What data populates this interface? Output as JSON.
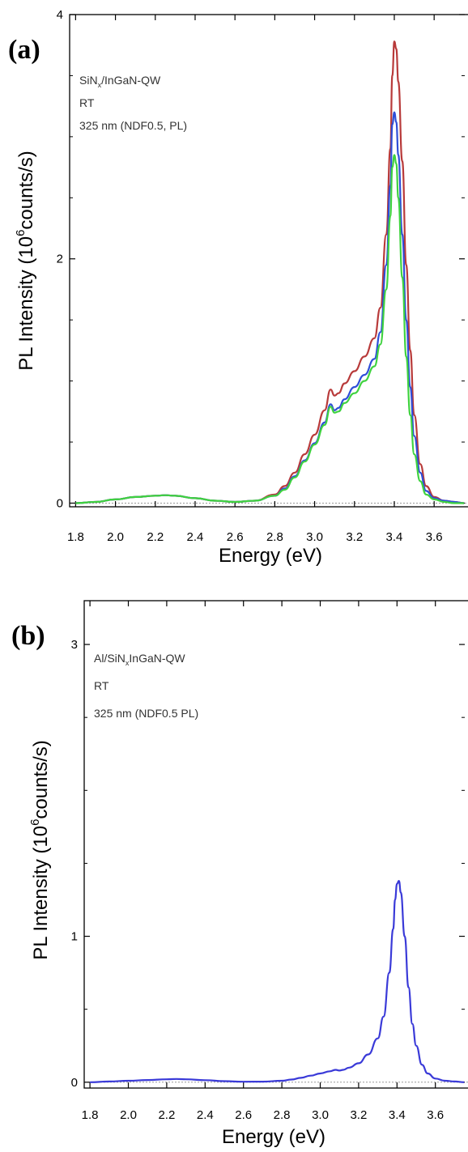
{
  "chart_data": [
    {
      "panel": "(a)",
      "type": "line",
      "annotations": [
        "SiN",
        "x",
        "/InGaN-QW",
        "RT",
        "325 nm (NDF0.5, PL)"
      ],
      "xlabel": "Energy (eV)",
      "ylabel": "PL Intensity (10",
      "ylabel_sup": "6",
      "ylabel_tail": "counts/s)",
      "xlim": [
        1.77,
        3.77
      ],
      "ylim": [
        -0.03,
        4.0
      ],
      "x_ticks": [
        1.8,
        2.0,
        2.2,
        2.4,
        2.6,
        2.8,
        3.0,
        3.2,
        3.4,
        3.6
      ],
      "x_tick_labels": [
        "1.8",
        "2.0",
        "2.2",
        "2.4",
        "2.6",
        "2.8",
        "3.0",
        "3.2",
        "3.4",
        "3.6"
      ],
      "y_major_ticks": [
        0,
        2,
        4
      ],
      "y_tick_labels": [
        "0",
        "2",
        "4"
      ],
      "y_minor_ticks": [
        0.5,
        1,
        1.5,
        2.5,
        3,
        3.5
      ],
      "zero_line": "dotted",
      "grid": false,
      "legend": "none",
      "series": [
        {
          "color": "#b83a3a",
          "x": [
            1.8,
            1.9,
            2.0,
            2.1,
            2.2,
            2.25,
            2.3,
            2.4,
            2.5,
            2.6,
            2.7,
            2.8,
            2.85,
            2.9,
            2.95,
            3.0,
            3.05,
            3.08,
            3.1,
            3.12,
            3.15,
            3.2,
            3.25,
            3.3,
            3.33,
            3.36,
            3.38,
            3.39,
            3.4,
            3.41,
            3.42,
            3.44,
            3.46,
            3.48,
            3.5,
            3.53,
            3.56,
            3.6,
            3.65,
            3.7,
            3.75
          ],
          "values": [
            0.0,
            0.01,
            0.03,
            0.05,
            0.06,
            0.065,
            0.06,
            0.04,
            0.02,
            0.01,
            0.02,
            0.07,
            0.14,
            0.25,
            0.4,
            0.56,
            0.76,
            0.93,
            0.88,
            0.9,
            0.98,
            1.08,
            1.2,
            1.35,
            1.6,
            2.2,
            2.9,
            3.5,
            3.78,
            3.72,
            3.45,
            2.8,
            1.95,
            1.25,
            0.72,
            0.32,
            0.14,
            0.05,
            0.02,
            0.01,
            0.0
          ]
        },
        {
          "color": "#2e4ed8",
          "x": [
            1.8,
            1.9,
            2.0,
            2.1,
            2.2,
            2.25,
            2.3,
            2.4,
            2.5,
            2.6,
            2.7,
            2.8,
            2.85,
            2.9,
            2.95,
            3.0,
            3.05,
            3.08,
            3.1,
            3.12,
            3.15,
            3.2,
            3.25,
            3.3,
            3.33,
            3.36,
            3.38,
            3.39,
            3.4,
            3.41,
            3.42,
            3.44,
            3.46,
            3.48,
            3.5,
            3.53,
            3.56,
            3.6,
            3.65,
            3.7,
            3.75
          ],
          "values": [
            0.0,
            0.01,
            0.03,
            0.05,
            0.06,
            0.065,
            0.06,
            0.04,
            0.02,
            0.01,
            0.02,
            0.06,
            0.12,
            0.22,
            0.35,
            0.49,
            0.66,
            0.81,
            0.76,
            0.78,
            0.85,
            0.95,
            1.05,
            1.18,
            1.4,
            1.95,
            2.6,
            3.1,
            3.2,
            3.12,
            2.85,
            2.2,
            1.5,
            0.95,
            0.55,
            0.25,
            0.1,
            0.04,
            0.02,
            0.01,
            0.0
          ]
        },
        {
          "color": "#3fd23f",
          "x": [
            1.8,
            1.9,
            2.0,
            2.1,
            2.2,
            2.25,
            2.3,
            2.4,
            2.5,
            2.6,
            2.7,
            2.8,
            2.85,
            2.9,
            2.95,
            3.0,
            3.05,
            3.08,
            3.1,
            3.12,
            3.15,
            3.2,
            3.25,
            3.3,
            3.33,
            3.36,
            3.38,
            3.39,
            3.4,
            3.41,
            3.42,
            3.44,
            3.46,
            3.48,
            3.5,
            3.53,
            3.56,
            3.6,
            3.65,
            3.7,
            3.75
          ],
          "values": [
            0.0,
            0.01,
            0.03,
            0.05,
            0.06,
            0.065,
            0.06,
            0.04,
            0.02,
            0.01,
            0.02,
            0.06,
            0.11,
            0.21,
            0.34,
            0.48,
            0.64,
            0.79,
            0.74,
            0.75,
            0.82,
            0.9,
            1.0,
            1.12,
            1.3,
            1.75,
            2.35,
            2.75,
            2.85,
            2.78,
            2.5,
            1.85,
            1.2,
            0.72,
            0.4,
            0.18,
            0.07,
            0.03,
            0.01,
            0.0,
            0.0
          ]
        }
      ]
    },
    {
      "panel": "(b)",
      "type": "line",
      "annotations": [
        "Al/SiN",
        "x",
        "InGaN-QW",
        "RT",
        "325 nm (NDF0.5 PL)"
      ],
      "xlabel": "Energy (eV)",
      "ylabel": "PL Intensity (10",
      "ylabel_sup": "6",
      "ylabel_tail": "counts/s)",
      "xlim": [
        1.77,
        3.77
      ],
      "ylim": [
        -0.04,
        3.3
      ],
      "x_ticks": [
        1.8,
        2.0,
        2.2,
        2.4,
        2.6,
        2.8,
        3.0,
        3.2,
        3.4,
        3.6
      ],
      "x_tick_labels": [
        "1.8",
        "2.0",
        "2.2",
        "2.4",
        "2.6",
        "2.8",
        "3.0",
        "3.2",
        "3.4",
        "3.6"
      ],
      "y_major_ticks": [
        0,
        1,
        3
      ],
      "y_tick_labels": [
        "0",
        "1",
        "3"
      ],
      "y_minor_ticks": [
        0.5,
        1.5,
        2,
        2.5
      ],
      "zero_line": "dotted",
      "grid": false,
      "legend": "none",
      "series": [
        {
          "color": "#3a3ad8",
          "x": [
            1.8,
            1.9,
            2.0,
            2.1,
            2.2,
            2.25,
            2.3,
            2.4,
            2.5,
            2.6,
            2.7,
            2.8,
            2.85,
            2.9,
            2.95,
            3.0,
            3.05,
            3.08,
            3.1,
            3.12,
            3.15,
            3.2,
            3.25,
            3.3,
            3.33,
            3.36,
            3.38,
            3.39,
            3.4,
            3.41,
            3.42,
            3.44,
            3.46,
            3.48,
            3.5,
            3.53,
            3.56,
            3.6,
            3.65,
            3.7,
            3.75
          ],
          "values": [
            0.0,
            0.005,
            0.01,
            0.015,
            0.02,
            0.022,
            0.02,
            0.014,
            0.007,
            0.003,
            0.004,
            0.01,
            0.018,
            0.03,
            0.045,
            0.06,
            0.075,
            0.085,
            0.08,
            0.085,
            0.1,
            0.13,
            0.19,
            0.3,
            0.45,
            0.75,
            1.05,
            1.25,
            1.36,
            1.38,
            1.3,
            1.0,
            0.65,
            0.4,
            0.25,
            0.12,
            0.06,
            0.025,
            0.01,
            0.005,
            0.0
          ]
        }
      ]
    }
  ]
}
